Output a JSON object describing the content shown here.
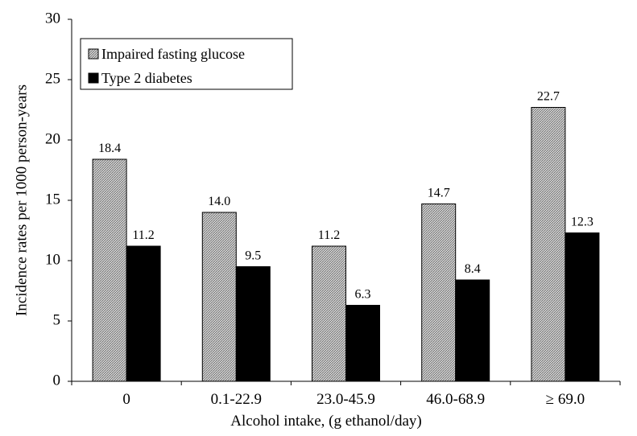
{
  "chart_data": {
    "type": "bar",
    "title": "",
    "xlabel": "Alcohol intake, (g ethanol/day)",
    "ylabel": "Incidence rates per 1000 person-years",
    "ylim": [
      0,
      30
    ],
    "yticks": [
      0,
      5,
      10,
      15,
      20,
      25,
      30
    ],
    "ytick_labels": [
      "0",
      "5",
      "10",
      "15",
      "20",
      "25",
      "30"
    ],
    "categories": [
      "0",
      "0.1-22.9",
      "23.0-45.9",
      "46.0-68.9",
      "≥ 69.0"
    ],
    "series": [
      {
        "name": "Impaired fasting glucose",
        "values": [
          18.4,
          14.0,
          11.2,
          14.7,
          22.7
        ],
        "value_labels": [
          "18.4",
          "14.0",
          "11.2",
          "14.7",
          "22.7"
        ],
        "fill": "hatched-gray"
      },
      {
        "name": "Type 2 diabetes",
        "values": [
          11.2,
          9.5,
          6.3,
          8.4,
          12.3
        ],
        "value_labels": [
          "11.2",
          "9.5",
          "6.3",
          "8.4",
          "12.3"
        ],
        "fill": "#000000"
      }
    ],
    "legend_position": "top-left",
    "grid": false
  }
}
